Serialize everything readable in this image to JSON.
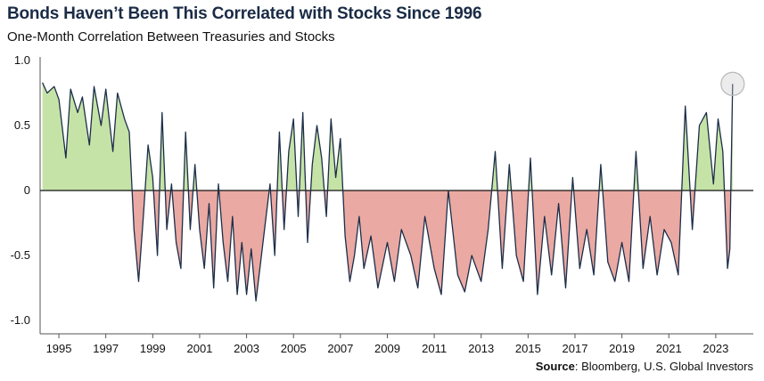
{
  "chart_data": {
    "type": "area",
    "title": "Bonds Haven’t Been This Correlated with Stocks Since 1996",
    "subtitle": "One-Month Correlation Between Treasuries and Stocks",
    "xlabel": "",
    "ylabel": "",
    "ylim": [
      -1.0,
      1.0
    ],
    "xlim": [
      1994.2,
      2024.6
    ],
    "y_ticks": [
      "1.0",
      "0.5",
      "0",
      "-0.5",
      "-1.0"
    ],
    "x_ticks": [
      "1995",
      "1997",
      "1999",
      "2001",
      "2003",
      "2005",
      "2007",
      "2009",
      "2011",
      "2013",
      "2015",
      "2017",
      "2019",
      "2021",
      "2023"
    ],
    "fill_positive_color": "#c5e3a6",
    "fill_negative_color": "#eaa9a2",
    "line_color": "#1c2e4a",
    "highlight": {
      "x": 2023.72,
      "y": 0.82,
      "description_visible": false
    },
    "series": [
      {
        "name": "",
        "x": [
          1994.3,
          1994.5,
          1994.8,
          1995.0,
          1995.3,
          1995.5,
          1995.8,
          1996.0,
          1996.3,
          1996.5,
          1996.8,
          1997.0,
          1997.3,
          1997.5,
          1997.8,
          1998.0,
          1998.2,
          1998.4,
          1998.6,
          1998.8,
          1999.0,
          1999.2,
          1999.4,
          1999.6,
          1999.8,
          2000.0,
          2000.2,
          2000.4,
          2000.6,
          2000.8,
          2001.0,
          2001.2,
          2001.4,
          2001.6,
          2001.8,
          2002.0,
          2002.2,
          2002.4,
          2002.6,
          2002.8,
          2003.0,
          2003.2,
          2003.4,
          2003.6,
          2003.8,
          2004.0,
          2004.2,
          2004.4,
          2004.6,
          2004.8,
          2005.0,
          2005.2,
          2005.4,
          2005.6,
          2005.8,
          2006.0,
          2006.2,
          2006.4,
          2006.6,
          2006.8,
          2007.0,
          2007.2,
          2007.4,
          2007.6,
          2007.8,
          2008.0,
          2008.3,
          2008.6,
          2009.0,
          2009.3,
          2009.6,
          2010.0,
          2010.3,
          2010.6,
          2011.0,
          2011.3,
          2011.6,
          2012.0,
          2012.3,
          2012.6,
          2013.0,
          2013.3,
          2013.6,
          2013.9,
          2014.2,
          2014.5,
          2014.8,
          2015.1,
          2015.4,
          2015.7,
          2016.0,
          2016.3,
          2016.6,
          2016.9,
          2017.2,
          2017.5,
          2017.8,
          2018.1,
          2018.4,
          2018.7,
          2019.0,
          2019.3,
          2019.6,
          2019.9,
          2020.2,
          2020.5,
          2020.8,
          2021.1,
          2021.4,
          2021.7,
          2022.0,
          2022.3,
          2022.6,
          2022.9,
          2023.1,
          2023.3,
          2023.5,
          2023.6,
          2023.72
        ],
        "y": [
          0.83,
          0.75,
          0.8,
          0.7,
          0.25,
          0.78,
          0.6,
          0.72,
          0.35,
          0.8,
          0.5,
          0.78,
          0.3,
          0.75,
          0.55,
          0.45,
          -0.3,
          -0.7,
          -0.2,
          0.35,
          0.1,
          -0.5,
          0.6,
          -0.3,
          0.05,
          -0.4,
          -0.6,
          0.45,
          -0.3,
          0.2,
          -0.3,
          -0.6,
          -0.1,
          -0.75,
          0.05,
          -0.4,
          -0.7,
          -0.2,
          -0.8,
          -0.4,
          -0.8,
          -0.45,
          -0.85,
          -0.55,
          -0.25,
          0.05,
          -0.5,
          0.45,
          -0.3,
          0.3,
          0.55,
          -0.2,
          0.6,
          -0.4,
          0.2,
          0.5,
          0.25,
          -0.2,
          0.55,
          0.1,
          0.4,
          -0.35,
          -0.7,
          -0.5,
          -0.2,
          -0.6,
          -0.35,
          -0.75,
          -0.4,
          -0.7,
          -0.3,
          -0.5,
          -0.75,
          -0.2,
          -0.6,
          -0.8,
          0.0,
          -0.65,
          -0.78,
          -0.5,
          -0.7,
          -0.3,
          0.3,
          -0.6,
          0.2,
          -0.5,
          -0.7,
          0.25,
          -0.8,
          -0.2,
          -0.65,
          -0.1,
          -0.75,
          0.1,
          -0.6,
          -0.3,
          -0.65,
          0.2,
          -0.55,
          -0.7,
          -0.4,
          -0.7,
          0.3,
          -0.6,
          -0.2,
          -0.65,
          -0.3,
          -0.4,
          -0.65,
          0.65,
          -0.3,
          0.5,
          0.6,
          0.05,
          0.55,
          0.3,
          -0.6,
          -0.45,
          0.82
        ]
      }
    ]
  },
  "source": {
    "label": "Source",
    "text": ": Bloomberg, U.S. Global Investors"
  }
}
